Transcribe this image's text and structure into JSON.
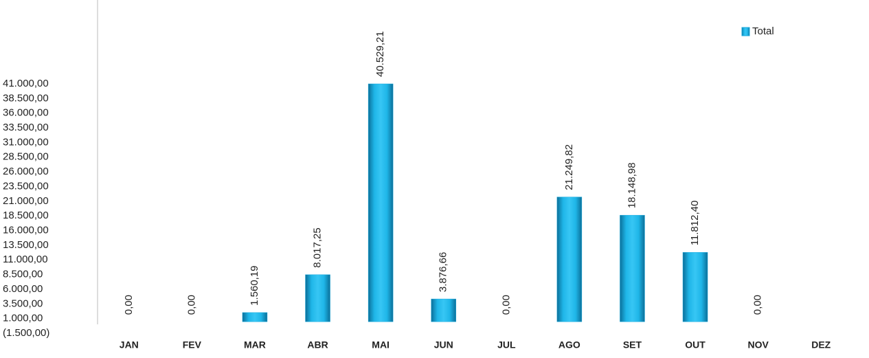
{
  "chart_data": {
    "type": "bar",
    "categories": [
      "JAN",
      "FEV",
      "MAR",
      "ABR",
      "MAI",
      "JUN",
      "JUL",
      "AGO",
      "SET",
      "OUT",
      "NOV",
      "DEZ"
    ],
    "series": [
      {
        "name": "Total",
        "color": "#1aa9dc",
        "values": [
          0,
          0,
          1560.19,
          8017.25,
          40529.21,
          3876.66,
          0,
          21249.82,
          18148.98,
          11812.4,
          0,
          null
        ],
        "value_labels": [
          "0,00",
          "0,00",
          "1.560,19",
          "8.017,25",
          "40.529,21",
          "3.876,66",
          "0,00",
          "21.249,82",
          "18.148,98",
          "11.812,40",
          "0,00",
          null
        ]
      }
    ],
    "ylim": [
      -1500,
      41000
    ],
    "yticks": [
      {
        "value": -1500,
        "label": "(1.500,00)"
      },
      {
        "value": 1000,
        "label": "1.000,00"
      },
      {
        "value": 3500,
        "label": "3.500,00"
      },
      {
        "value": 6000,
        "label": "6.000,00"
      },
      {
        "value": 8500,
        "label": "8.500,00"
      },
      {
        "value": 11000,
        "label": "11.000,00"
      },
      {
        "value": 13500,
        "label": "13.500,00"
      },
      {
        "value": 16000,
        "label": "16.000,00"
      },
      {
        "value": 18500,
        "label": "18.500,00"
      },
      {
        "value": 21000,
        "label": "21.000,00"
      },
      {
        "value": 23500,
        "label": "23.500,00"
      },
      {
        "value": 26000,
        "label": "26.000,00"
      },
      {
        "value": 28500,
        "label": "28.500,00"
      },
      {
        "value": 31000,
        "label": "31.000,00"
      },
      {
        "value": 33500,
        "label": "33.500,00"
      },
      {
        "value": 36000,
        "label": "36.000,00"
      },
      {
        "value": 38500,
        "label": "38.500,00"
      },
      {
        "value": 41000,
        "label": "41.000,00"
      }
    ],
    "grid": false,
    "legend": "top-right"
  }
}
